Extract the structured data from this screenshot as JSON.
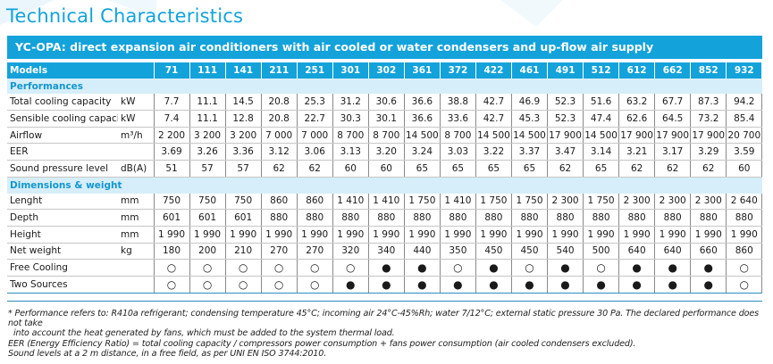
{
  "page": {
    "heading": "Technical Characteristics",
    "subtitle": "YC-OPA: direct expansion air conditioners with air cooled or water condensers and up-flow air supply"
  },
  "table": {
    "models_label": "Models",
    "models": [
      "71",
      "111",
      "141",
      "211",
      "251",
      "301",
      "302",
      "361",
      "372",
      "422",
      "461",
      "491",
      "512",
      "612",
      "662",
      "852",
      "932"
    ],
    "sections": [
      {
        "title": "Performances",
        "rows": [
          {
            "label": "Total cooling capacity",
            "unit": "kW",
            "values": [
              "7.7",
              "11.1",
              "14.5",
              "20.8",
              "25.3",
              "31.2",
              "30.6",
              "36.6",
              "38.8",
              "42.7",
              "46.9",
              "52.3",
              "51.6",
              "63.2",
              "67.7",
              "87.3",
              "94.2"
            ]
          },
          {
            "label": "Sensible cooling capacity",
            "unit": "kW",
            "values": [
              "7.4",
              "11.1",
              "12.8",
              "20.8",
              "22.7",
              "30.3",
              "30.1",
              "36.6",
              "33.6",
              "42.7",
              "45.3",
              "52.3",
              "47.4",
              "62.6",
              "64.5",
              "73.2",
              "85.4"
            ]
          },
          {
            "label": "Airflow",
            "unit": "m³/h",
            "values": [
              "2 200",
              "3 200",
              "3 200",
              "7 000",
              "7 000",
              "8 700",
              "8 700",
              "14 500",
              "8 700",
              "14 500",
              "14 500",
              "17 900",
              "14 500",
              "17 900",
              "17 900",
              "17 900",
              "20 700"
            ]
          },
          {
            "label": "EER",
            "unit": "",
            "values": [
              "3.69",
              "3.26",
              "3.36",
              "3.12",
              "3.06",
              "3.13",
              "3.20",
              "3.24",
              "3.03",
              "3.22",
              "3.37",
              "3.47",
              "3.14",
              "3.21",
              "3.17",
              "3.29",
              "3.59"
            ]
          },
          {
            "label": "Sound pressure level",
            "unit": "dB(A)",
            "values": [
              "51",
              "57",
              "57",
              "62",
              "62",
              "60",
              "60",
              "65",
              "65",
              "65",
              "65",
              "62",
              "65",
              "62",
              "62",
              "62",
              "60"
            ]
          }
        ]
      },
      {
        "title": "Dimensions & weight",
        "rows": [
          {
            "label": "Lenght",
            "unit": "mm",
            "values": [
              "750",
              "750",
              "750",
              "860",
              "860",
              "1 410",
              "1 410",
              "1 750",
              "1 410",
              "1 750",
              "1 750",
              "2 300",
              "1 750",
              "2 300",
              "2 300",
              "2 300",
              "2 640"
            ]
          },
          {
            "label": "Depth",
            "unit": "mm",
            "values": [
              "601",
              "601",
              "601",
              "880",
              "880",
              "880",
              "880",
              "880",
              "880",
              "880",
              "880",
              "880",
              "880",
              "880",
              "880",
              "880",
              "880"
            ]
          },
          {
            "label": "Height",
            "unit": "mm",
            "values": [
              "1 990",
              "1 990",
              "1 990",
              "1 990",
              "1 990",
              "1 990",
              "1 990",
              "1 990",
              "1 990",
              "1 990",
              "1 990",
              "1 990",
              "1 990",
              "1 990",
              "1 990",
              "1 990",
              "1 990"
            ]
          },
          {
            "label": "Net weight",
            "unit": "kg",
            "values": [
              "180",
              "200",
              "210",
              "270",
              "270",
              "320",
              "340",
              "440",
              "350",
              "450",
              "450",
              "540",
              "500",
              "640",
              "640",
              "660",
              "860"
            ]
          },
          {
            "label": "Free Cooling",
            "unit": "",
            "values": [
              "○",
              "○",
              "○",
              "○",
              "○",
              "○",
              "●",
              "●",
              "○",
              "●",
              "○",
              "●",
              "○",
              "●",
              "●",
              "●",
              "○"
            ]
          },
          {
            "label": "Two Sources",
            "unit": "",
            "values": [
              "○",
              "○",
              "○",
              "○",
              "○",
              "●",
              "●",
              "●",
              "●",
              "●",
              "●",
              "●",
              "●",
              "●",
              "●",
              "●",
              "○"
            ]
          }
        ]
      }
    ]
  },
  "notes": [
    "* Performance refers to: R410a refrigerant; condensing temperature 45°C; incoming air 24°C-45%Rh; water 7/12°C; external static pressure 30 Pa. The declared performance does not take",
    "into account the heat generated by fans, which must be added to the system thermal load.",
    "EER (Energy Efficiency Ratio) = total cooling capacity / compressors power consumption + fans power consumption (air cooled condensers excluded).",
    "Sound levels at a 2 m distance, in a free field, as per UNI EN ISO 3744:2010."
  ],
  "colors": {
    "accent": "#13a2da",
    "heading": "#12a3dc",
    "section_bg": "#d6eef9",
    "section_text": "#1496cf"
  }
}
